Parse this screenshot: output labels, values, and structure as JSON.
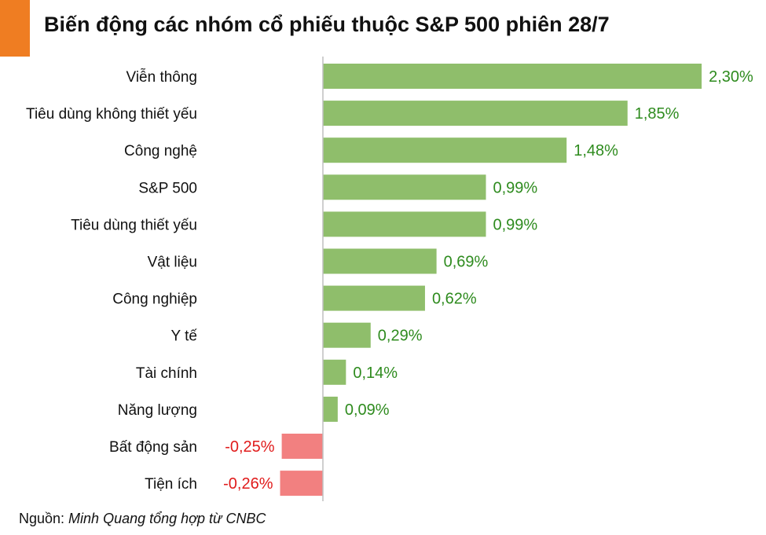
{
  "title": "Biến động các nhóm cổ phiếu thuộc S&P 500 phiên 28/7",
  "source": {
    "prefix": "Nguồn: ",
    "text": "Minh Quang tổng hợp từ CNBC"
  },
  "colors": {
    "accent": "#ef7d22",
    "positive_bar": "#8fbe6b",
    "negative_bar": "#f28080",
    "positive_label": "#2e8b1e",
    "negative_label": "#e01b1b"
  },
  "chart_data": {
    "type": "bar",
    "orientation": "horizontal",
    "title": "Biến động các nhóm cổ phiếu thuộc S&P 500 phiên 28/7",
    "categories": [
      "Viễn thông",
      "Tiêu dùng không thiết yếu",
      "Công nghệ",
      "S&P 500",
      "Tiêu dùng thiết yếu",
      "Vật liệu",
      "Công nghiệp",
      "Y tế",
      "Tài chính",
      "Năng lượng",
      "Bất động sản",
      "Tiện ích"
    ],
    "values": [
      2.3,
      1.85,
      1.48,
      0.99,
      0.99,
      0.69,
      0.62,
      0.29,
      0.14,
      0.09,
      -0.25,
      -0.26
    ],
    "data_labels": [
      "2,30%",
      "1,85%",
      "1,48%",
      "0,99%",
      "0,99%",
      "0,69%",
      "0,62%",
      "0,29%",
      "0,14%",
      "0,09%",
      "-0,25%",
      "-0,26%"
    ],
    "unit": "%",
    "grid": false,
    "legend": "none"
  }
}
